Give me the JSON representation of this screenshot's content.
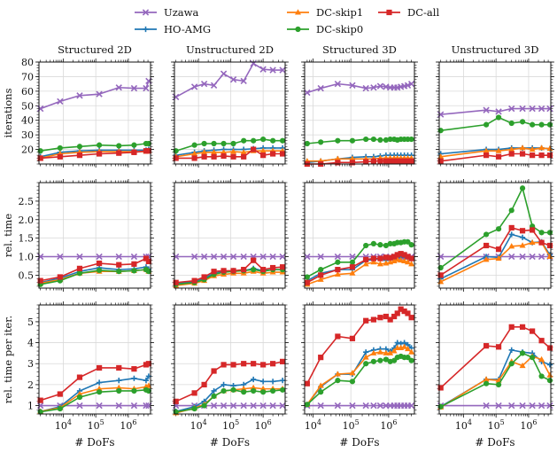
{
  "legend": [
    {
      "name": "Uzawa",
      "color": "#9467bd",
      "marker": "x"
    },
    {
      "name": "HO-AMG",
      "color": "#1f77b4",
      "marker": "plus"
    },
    {
      "name": "DC-skip1",
      "color": "#ff7f0e",
      "marker": "triangle"
    },
    {
      "name": "DC-skip0",
      "color": "#2ca02c",
      "marker": "circle"
    },
    {
      "name": "DC-all",
      "color": "#d62728",
      "marker": "square"
    }
  ],
  "chart_data": {
    "type": "line",
    "xscale": "log",
    "xlabel": "# DoFs",
    "x_tick_labels": [
      "10^4",
      "10^5",
      "10^6"
    ],
    "column_titles": [
      "Structured 2D",
      "Unstructured 2D",
      "Structured 3D",
      "Unstructured 3D"
    ],
    "row_labels": [
      "iterations",
      "rel. time",
      "rel. time per iter."
    ],
    "rows": [
      {
        "ylim": [
          10,
          80
        ],
        "yticks": [
          20,
          30,
          40,
          50,
          60,
          70,
          80
        ],
        "ytick_labels": [
          "20",
          "30",
          "40",
          "50",
          "60",
          "70",
          "80"
        ]
      },
      {
        "ylim": [
          0.15,
          3.0
        ],
        "yticks": [
          0.5,
          1.0,
          1.5,
          2.0,
          2.5
        ],
        "ytick_labels": [
          "0.5",
          "1.0",
          "1.5",
          "2.0",
          "2.5"
        ]
      },
      {
        "ylim": [
          0.6,
          5.8
        ],
        "yticks": [
          1,
          2,
          3,
          4,
          5
        ],
        "ytick_labels": [
          "1",
          "2",
          "3",
          "4",
          "5"
        ]
      }
    ],
    "columns": [
      {
        "xlim": [
          1800,
          4800000
        ],
        "x": [
          2000,
          8000,
          32000,
          128000,
          512000,
          1500000,
          3500000,
          4200000
        ],
        "rows": [
          {
            "series": {
              "Uzawa": [
                48,
                53,
                57,
                58,
                62.5,
                62,
                62,
                67
              ],
              "HO-AMG": [
                15,
                18,
                19,
                19.5,
                19.5,
                19.5,
                19.5,
                20
              ],
              "DC-skip1": [
                14,
                17,
                18,
                18.5,
                18.5,
                18.5,
                18.5,
                19
              ],
              "DC-skip0": [
                19,
                21,
                22,
                23,
                22.5,
                23,
                24,
                24
              ],
              "DC-all": [
                14,
                15,
                16,
                17,
                17.5,
                18,
                19,
                19
              ]
            }
          },
          {
            "series": {
              "Uzawa": [
                1,
                1,
                1,
                1,
                1,
                1,
                1,
                1
              ],
              "HO-AMG": [
                0.3,
                0.42,
                0.6,
                0.7,
                0.65,
                0.67,
                0.72,
                0.66
              ],
              "DC-skip1": [
                0.28,
                0.38,
                0.55,
                0.6,
                0.6,
                0.62,
                0.65,
                0.6
              ],
              "DC-skip0": [
                0.25,
                0.35,
                0.55,
                0.63,
                0.6,
                0.62,
                0.65,
                0.6
              ],
              "DC-all": [
                0.35,
                0.45,
                0.68,
                0.82,
                0.78,
                0.8,
                0.95,
                0.87
              ]
            }
          },
          {
            "series": {
              "Uzawa": [
                1,
                1,
                1,
                1,
                1,
                1,
                1,
                1
              ],
              "HO-AMG": [
                0.72,
                0.95,
                1.7,
                2.1,
                2.2,
                2.3,
                2.2,
                2.4
              ],
              "DC-skip1": [
                0.72,
                0.9,
                1.55,
                1.8,
                1.85,
                1.8,
                1.9,
                1.95
              ],
              "DC-skip0": [
                0.7,
                0.85,
                1.4,
                1.65,
                1.7,
                1.7,
                1.75,
                1.7
              ],
              "DC-all": [
                1.25,
                1.55,
                2.35,
                2.8,
                2.8,
                2.75,
                2.95,
                3.0
              ]
            }
          }
        ]
      },
      {
        "xlim": [
          1800,
          4800000
        ],
        "x": [
          2000,
          7500,
          15000,
          30000,
          60000,
          120000,
          250000,
          500000,
          1000000,
          2000000,
          4000000
        ],
        "rows": [
          {
            "series": {
              "Uzawa": [
                56,
                63,
                65,
                64,
                72,
                68,
                67,
                79,
                75,
                74.5,
                74.5
              ],
              "HO-AMG": [
                16,
                18,
                19,
                19.5,
                20,
                20,
                20,
                20.5,
                21,
                21,
                21
              ],
              "DC-skip1": [
                15,
                17,
                18,
                18,
                18,
                18.5,
                18,
                19,
                19,
                19,
                19
              ],
              "DC-skip0": [
                19,
                23,
                24,
                24,
                24,
                24,
                26,
                26,
                27,
                26,
                26
              ],
              "DC-all": [
                14,
                14,
                15,
                15,
                15.5,
                15,
                15,
                20,
                16,
                17,
                17
              ]
            }
          },
          {
            "series": {
              "Uzawa": [
                1,
                1,
                1,
                1,
                1,
                1,
                1,
                1,
                1,
                1,
                1
              ],
              "HO-AMG": [
                0.28,
                0.33,
                0.42,
                0.55,
                0.6,
                0.62,
                0.62,
                0.68,
                0.62,
                0.65,
                0.65
              ],
              "DC-skip1": [
                0.22,
                0.28,
                0.35,
                0.48,
                0.52,
                0.55,
                0.55,
                0.6,
                0.55,
                0.58,
                0.58
              ],
              "DC-skip0": [
                0.25,
                0.3,
                0.38,
                0.52,
                0.58,
                0.6,
                0.62,
                0.65,
                0.6,
                0.65,
                0.65
              ],
              "DC-all": [
                0.3,
                0.35,
                0.45,
                0.6,
                0.62,
                0.62,
                0.65,
                0.9,
                0.65,
                0.7,
                0.72
              ]
            }
          },
          {
            "series": {
              "Uzawa": [
                1,
                1,
                1,
                1,
                1,
                1,
                1,
                1,
                1,
                1,
                1
              ],
              "HO-AMG": [
                0.72,
                0.95,
                1.2,
                1.7,
                2.0,
                1.95,
                2.0,
                2.25,
                2.15,
                2.15,
                2.2
              ],
              "DC-skip1": [
                0.65,
                0.88,
                1.05,
                1.45,
                1.7,
                1.75,
                1.8,
                1.85,
                1.8,
                1.8,
                1.8
              ],
              "DC-skip0": [
                0.7,
                0.85,
                1.0,
                1.45,
                1.7,
                1.75,
                1.65,
                1.7,
                1.65,
                1.7,
                1.75
              ],
              "DC-all": [
                1.2,
                1.6,
                2.0,
                2.65,
                2.95,
                2.95,
                3.0,
                3.0,
                2.95,
                3.0,
                3.1
              ]
            }
          }
        ]
      },
      {
        "xlim": [
          6000,
          4800000
        ],
        "x": [
          7000,
          16000,
          45000,
          110000,
          250000,
          400000,
          600000,
          850000,
          1100000,
          1400000,
          1700000,
          2100000,
          2600000,
          3200000,
          4000000
        ],
        "rows": [
          {
            "series": {
              "Uzawa": [
                59,
                62,
                65,
                64,
                62,
                62.5,
                63.5,
                63,
                62.5,
                62.5,
                62.5,
                63,
                63.5,
                64,
                65
              ],
              "HO-AMG": [
                11,
                12,
                13.5,
                14.5,
                15,
                15,
                15.5,
                16,
                16,
                16,
                16,
                16,
                16,
                16,
                16
              ],
              "DC-skip1": [
                12,
                12,
                13.5,
                13.5,
                13.5,
                13.5,
                14,
                14,
                14,
                14,
                14,
                14,
                14,
                14,
                14
              ],
              "DC-skip0": [
                24,
                25,
                26,
                26,
                27,
                27,
                26.5,
                26.5,
                27,
                27,
                26.5,
                27,
                27,
                27,
                27
              ],
              "DC-all": [
                10,
                10,
                11,
                11,
                11.5,
                12,
                12,
                12,
                12,
                12,
                12,
                12,
                12,
                12,
                12
              ]
            }
          },
          {
            "series": {
              "Uzawa": [
                1,
                1,
                1,
                1,
                1,
                1,
                1,
                1,
                1,
                1,
                1,
                1,
                1,
                1,
                1
              ],
              "HO-AMG": [
                0.35,
                0.55,
                0.65,
                0.65,
                0.9,
                0.92,
                0.95,
                0.9,
                0.92,
                0.95,
                0.98,
                0.98,
                1.0,
                0.98,
                0.95
              ],
              "DC-skip1": [
                0.25,
                0.38,
                0.52,
                0.55,
                0.8,
                0.85,
                0.8,
                0.82,
                0.85,
                0.88,
                0.92,
                0.9,
                0.88,
                0.85,
                0.8
              ],
              "DC-skip0": [
                0.45,
                0.65,
                0.85,
                0.85,
                1.3,
                1.35,
                1.32,
                1.3,
                1.35,
                1.35,
                1.38,
                1.38,
                1.4,
                1.4,
                1.32
              ],
              "DC-all": [
                0.3,
                0.5,
                0.65,
                0.72,
                0.92,
                0.95,
                0.95,
                0.98,
                0.97,
                1.0,
                1.05,
                1.08,
                1.05,
                1.0,
                0.95
              ]
            }
          },
          {
            "series": {
              "Uzawa": [
                1,
                1,
                1,
                1,
                1,
                1,
                1,
                1,
                1,
                1,
                1,
                1,
                1,
                1,
                1
              ],
              "HO-AMG": [
                1.05,
                1.9,
                2.5,
                2.5,
                3.55,
                3.65,
                3.7,
                3.7,
                3.6,
                3.75,
                4.0,
                3.95,
                4.0,
                3.9,
                3.75
              ],
              "DC-skip1": [
                1.05,
                1.95,
                2.5,
                2.55,
                3.3,
                3.5,
                3.55,
                3.5,
                3.5,
                3.6,
                3.75,
                3.75,
                3.8,
                3.7,
                3.55
              ],
              "DC-skip0": [
                1.05,
                1.65,
                2.2,
                2.15,
                3.0,
                3.1,
                3.15,
                3.2,
                3.1,
                3.15,
                3.3,
                3.35,
                3.3,
                3.3,
                3.15
              ],
              "DC-all": [
                2.05,
                3.3,
                4.3,
                4.2,
                5.05,
                5.1,
                5.2,
                5.25,
                5.1,
                5.25,
                5.4,
                5.6,
                5.5,
                5.4,
                5.2
              ]
            }
          }
        ]
      },
      {
        "xlim": [
          1800,
          4800000
        ],
        "x": [
          2000,
          50000,
          120000,
          300000,
          650000,
          1300000,
          2500000,
          4500000
        ],
        "rows": [
          {
            "series": {
              "Uzawa": [
                44,
                47,
                46,
                48,
                48,
                48,
                48,
                48
              ],
              "HO-AMG": [
                17,
                20,
                20,
                21,
                21,
                21,
                21,
                20.5
              ],
              "DC-skip1": [
                15,
                19,
                19,
                20,
                21,
                20,
                21,
                20.5
              ],
              "DC-skip0": [
                33,
                37,
                42,
                38,
                39,
                37,
                37,
                37
              ],
              "DC-all": [
                12,
                16,
                15,
                17,
                17,
                16,
                16,
                16
              ]
            }
          },
          {
            "series": {
              "Uzawa": [
                1,
                1,
                1,
                1,
                1,
                1,
                1,
                1
              ],
              "HO-AMG": [
                0.4,
                1.0,
                0.98,
                1.6,
                1.52,
                1.38,
                1.4,
                1.05
              ],
              "DC-skip1": [
                0.32,
                0.92,
                0.95,
                1.28,
                1.3,
                1.38,
                1.38,
                1.0
              ],
              "DC-skip0": [
                0.7,
                1.6,
                1.75,
                2.25,
                2.85,
                1.82,
                1.65,
                1.65
              ],
              "DC-all": [
                0.5,
                1.3,
                1.2,
                1.78,
                1.7,
                1.72,
                1.38,
                1.3
              ]
            }
          },
          {
            "series": {
              "Uzawa": [
                1,
                1,
                1,
                1,
                1,
                1,
                1,
                1
              ],
              "HO-AMG": [
                0.95,
                2.25,
                2.25,
                3.65,
                3.55,
                3.5,
                3.1,
                2.95
              ],
              "DC-skip1": [
                0.92,
                2.25,
                2.2,
                3.1,
                2.9,
                3.35,
                3.2,
                2.45
              ],
              "DC-skip0": [
                0.95,
                2.05,
                2.0,
                3.0,
                3.5,
                3.3,
                2.4,
                2.2
              ],
              "DC-all": [
                1.85,
                3.85,
                3.8,
                4.75,
                4.75,
                4.55,
                4.1,
                3.75
              ]
            }
          }
        ]
      }
    ]
  }
}
